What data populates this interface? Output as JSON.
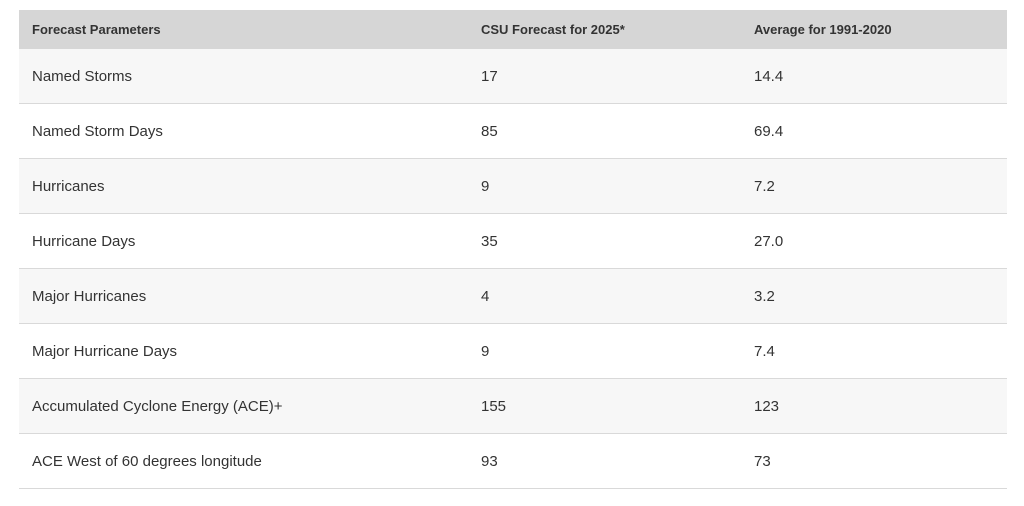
{
  "table": {
    "headers": [
      "Forecast Parameters",
      "CSU Forecast for 2025*",
      "Average for 1991-2020"
    ],
    "rows": [
      [
        "Named Storms",
        "17",
        "14.4"
      ],
      [
        "Named Storm Days",
        "85",
        "69.4"
      ],
      [
        "Hurricanes",
        "9",
        "7.2"
      ],
      [
        "Hurricane Days",
        "35",
        "27.0"
      ],
      [
        "Major Hurricanes",
        "4",
        "3.2"
      ],
      [
        "Major Hurricane Days",
        "9",
        "7.4"
      ],
      [
        "Accumulated Cyclone Energy (ACE)+",
        "155",
        "123"
      ],
      [
        "ACE West of 60 degrees longitude",
        "93",
        "73"
      ]
    ]
  }
}
